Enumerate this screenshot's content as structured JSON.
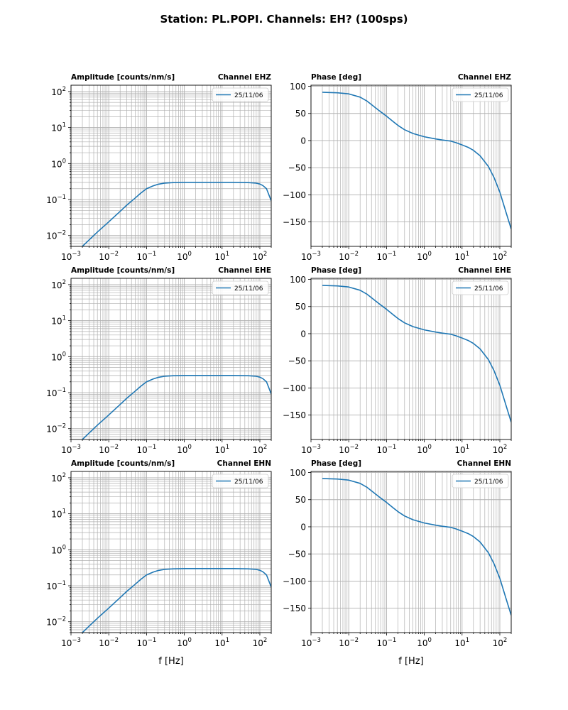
{
  "figure": {
    "title": "Station: PL.POPI. Channels: EH? (100sps)"
  },
  "chart_data": [
    {
      "type": "line",
      "id": "amp-ehz",
      "title_left": "Amplitude [counts/nm/s]",
      "title_right": "Channel EHZ",
      "xlabel": "",
      "xscale": "log",
      "yscale": "log",
      "xlim": [
        0.001,
        200
      ],
      "ylim": [
        0.005,
        150
      ],
      "xticks": [
        {
          "base": "10",
          "exp": "−3"
        },
        {
          "base": "10",
          "exp": "−2"
        },
        {
          "base": "10",
          "exp": "−1"
        },
        {
          "base": "10",
          "exp": "0"
        },
        {
          "base": "10",
          "exp": "1"
        },
        {
          "base": "10",
          "exp": "2"
        }
      ],
      "yticks": [
        {
          "base": "10",
          "exp": "−2"
        },
        {
          "base": "10",
          "exp": "−1"
        },
        {
          "base": "10",
          "exp": "0"
        },
        {
          "base": "10",
          "exp": "1"
        },
        {
          "base": "10",
          "exp": "2"
        }
      ],
      "legend": "top-right",
      "series": [
        {
          "name": "25/11/06",
          "color": "#1f77b4",
          "x": [
            0.002,
            0.003,
            0.005,
            0.01,
            0.02,
            0.03,
            0.05,
            0.07,
            0.1,
            0.15,
            0.2,
            0.3,
            0.5,
            1,
            2,
            5,
            10,
            20,
            50,
            80,
            100,
            120,
            150,
            200
          ],
          "y": [
            0.005,
            0.0075,
            0.0125,
            0.024,
            0.047,
            0.07,
            0.11,
            0.15,
            0.2,
            0.24,
            0.265,
            0.285,
            0.295,
            0.3,
            0.3,
            0.3,
            0.3,
            0.3,
            0.295,
            0.285,
            0.27,
            0.245,
            0.2,
            0.092
          ]
        }
      ]
    },
    {
      "type": "line",
      "id": "phase-ehz",
      "title_left": "Phase [deg]",
      "title_right": "Channel EHZ",
      "xlabel": "",
      "xscale": "log",
      "yscale": "linear",
      "xlim": [
        0.001,
        200
      ],
      "ylim": [
        -195,
        102
      ],
      "xticks": [
        {
          "base": "10",
          "exp": "−3"
        },
        {
          "base": "10",
          "exp": "−2"
        },
        {
          "base": "10",
          "exp": "−1"
        },
        {
          "base": "10",
          "exp": "0"
        },
        {
          "base": "10",
          "exp": "1"
        },
        {
          "base": "10",
          "exp": "2"
        }
      ],
      "yticks": [
        "100",
        "50",
        "0",
        "−50",
        "−100",
        "−150"
      ],
      "ytick_values": [
        100,
        50,
        0,
        -50,
        -100,
        -150
      ],
      "legend": "top-right",
      "series": [
        {
          "name": "25/11/06",
          "color": "#1f77b4",
          "x": [
            0.002,
            0.003,
            0.005,
            0.01,
            0.02,
            0.03,
            0.05,
            0.07,
            0.1,
            0.15,
            0.2,
            0.3,
            0.5,
            1,
            2,
            3,
            5,
            7,
            10,
            15,
            20,
            30,
            50,
            70,
            100,
            150,
            200
          ],
          "y": [
            89,
            88.5,
            88,
            86,
            80,
            73,
            61,
            53,
            45,
            35,
            28,
            20,
            13,
            7,
            3,
            1,
            -1,
            -4,
            -8,
            -13,
            -18,
            -28,
            -48,
            -68,
            -95,
            -135,
            -163
          ]
        }
      ]
    },
    {
      "type": "line",
      "id": "amp-ehe",
      "title_left": "Amplitude [counts/nm/s]",
      "title_right": "Channel EHE",
      "xlabel": "",
      "xscale": "log",
      "yscale": "log",
      "xlim": [
        0.001,
        200
      ],
      "ylim": [
        0.005,
        150
      ],
      "xticks": [
        {
          "base": "10",
          "exp": "−3"
        },
        {
          "base": "10",
          "exp": "−2"
        },
        {
          "base": "10",
          "exp": "−1"
        },
        {
          "base": "10",
          "exp": "0"
        },
        {
          "base": "10",
          "exp": "1"
        },
        {
          "base": "10",
          "exp": "2"
        }
      ],
      "yticks": [
        {
          "base": "10",
          "exp": "−2"
        },
        {
          "base": "10",
          "exp": "−1"
        },
        {
          "base": "10",
          "exp": "0"
        },
        {
          "base": "10",
          "exp": "1"
        },
        {
          "base": "10",
          "exp": "2"
        }
      ],
      "legend": "top-right",
      "series": [
        {
          "name": "25/11/06",
          "color": "#1f77b4",
          "x": [
            0.002,
            0.003,
            0.005,
            0.01,
            0.02,
            0.03,
            0.05,
            0.07,
            0.1,
            0.15,
            0.2,
            0.3,
            0.5,
            1,
            2,
            5,
            10,
            20,
            50,
            80,
            100,
            120,
            150,
            200
          ],
          "y": [
            0.005,
            0.0075,
            0.0125,
            0.024,
            0.047,
            0.07,
            0.11,
            0.15,
            0.2,
            0.24,
            0.265,
            0.285,
            0.295,
            0.3,
            0.3,
            0.3,
            0.3,
            0.3,
            0.295,
            0.285,
            0.27,
            0.245,
            0.2,
            0.092
          ]
        }
      ]
    },
    {
      "type": "line",
      "id": "phase-ehe",
      "title_left": "Phase [deg]",
      "title_right": "Channel EHE",
      "xlabel": "",
      "xscale": "log",
      "yscale": "linear",
      "xlim": [
        0.001,
        200
      ],
      "ylim": [
        -195,
        102
      ],
      "xticks": [
        {
          "base": "10",
          "exp": "−3"
        },
        {
          "base": "10",
          "exp": "−2"
        },
        {
          "base": "10",
          "exp": "−1"
        },
        {
          "base": "10",
          "exp": "0"
        },
        {
          "base": "10",
          "exp": "1"
        },
        {
          "base": "10",
          "exp": "2"
        }
      ],
      "yticks": [
        "100",
        "50",
        "0",
        "−50",
        "−100",
        "−150"
      ],
      "ytick_values": [
        100,
        50,
        0,
        -50,
        -100,
        -150
      ],
      "legend": "top-right",
      "series": [
        {
          "name": "25/11/06",
          "color": "#1f77b4",
          "x": [
            0.002,
            0.003,
            0.005,
            0.01,
            0.02,
            0.03,
            0.05,
            0.07,
            0.1,
            0.15,
            0.2,
            0.3,
            0.5,
            1,
            2,
            3,
            5,
            7,
            10,
            15,
            20,
            30,
            50,
            70,
            100,
            150,
            200
          ],
          "y": [
            89,
            88.5,
            88,
            86,
            80,
            73,
            61,
            53,
            45,
            35,
            28,
            20,
            13,
            7,
            3,
            1,
            -1,
            -4,
            -8,
            -13,
            -18,
            -28,
            -48,
            -68,
            -95,
            -135,
            -163
          ]
        }
      ]
    },
    {
      "type": "line",
      "id": "amp-ehn",
      "title_left": "Amplitude [counts/nm/s]",
      "title_right": "Channel EHN",
      "xlabel": "f [Hz]",
      "xscale": "log",
      "yscale": "log",
      "xlim": [
        0.001,
        200
      ],
      "ylim": [
        0.005,
        150
      ],
      "xticks": [
        {
          "base": "10",
          "exp": "−3"
        },
        {
          "base": "10",
          "exp": "−2"
        },
        {
          "base": "10",
          "exp": "−1"
        },
        {
          "base": "10",
          "exp": "0"
        },
        {
          "base": "10",
          "exp": "1"
        },
        {
          "base": "10",
          "exp": "2"
        }
      ],
      "yticks": [
        {
          "base": "10",
          "exp": "−2"
        },
        {
          "base": "10",
          "exp": "−1"
        },
        {
          "base": "10",
          "exp": "0"
        },
        {
          "base": "10",
          "exp": "1"
        },
        {
          "base": "10",
          "exp": "2"
        }
      ],
      "legend": "top-right",
      "series": [
        {
          "name": "25/11/06",
          "color": "#1f77b4",
          "x": [
            0.002,
            0.003,
            0.005,
            0.01,
            0.02,
            0.03,
            0.05,
            0.07,
            0.1,
            0.15,
            0.2,
            0.3,
            0.5,
            1,
            2,
            5,
            10,
            20,
            50,
            80,
            100,
            120,
            150,
            200
          ],
          "y": [
            0.005,
            0.0075,
            0.0125,
            0.024,
            0.047,
            0.07,
            0.11,
            0.15,
            0.2,
            0.24,
            0.265,
            0.285,
            0.295,
            0.3,
            0.3,
            0.3,
            0.3,
            0.3,
            0.295,
            0.285,
            0.27,
            0.245,
            0.2,
            0.092
          ]
        }
      ]
    },
    {
      "type": "line",
      "id": "phase-ehn",
      "title_left": "Phase [deg]",
      "title_right": "Channel EHN",
      "xlabel": "f [Hz]",
      "xscale": "log",
      "yscale": "linear",
      "xlim": [
        0.001,
        200
      ],
      "ylim": [
        -195,
        102
      ],
      "xticks": [
        {
          "base": "10",
          "exp": "−3"
        },
        {
          "base": "10",
          "exp": "−2"
        },
        {
          "base": "10",
          "exp": "−1"
        },
        {
          "base": "10",
          "exp": "0"
        },
        {
          "base": "10",
          "exp": "1"
        },
        {
          "base": "10",
          "exp": "2"
        }
      ],
      "yticks": [
        "100",
        "50",
        "0",
        "−50",
        "−100",
        "−150"
      ],
      "ytick_values": [
        100,
        50,
        0,
        -50,
        -100,
        -150
      ],
      "legend": "top-right",
      "series": [
        {
          "name": "25/11/06",
          "color": "#1f77b4",
          "x": [
            0.002,
            0.003,
            0.005,
            0.01,
            0.02,
            0.03,
            0.05,
            0.07,
            0.1,
            0.15,
            0.2,
            0.3,
            0.5,
            1,
            2,
            3,
            5,
            7,
            10,
            15,
            20,
            30,
            50,
            70,
            100,
            150,
            200
          ],
          "y": [
            89,
            88.5,
            88,
            86,
            80,
            73,
            61,
            53,
            45,
            35,
            28,
            20,
            13,
            7,
            3,
            1,
            -1,
            -4,
            -8,
            -13,
            -18,
            -28,
            -48,
            -68,
            -95,
            -135,
            -163
          ]
        }
      ]
    }
  ]
}
